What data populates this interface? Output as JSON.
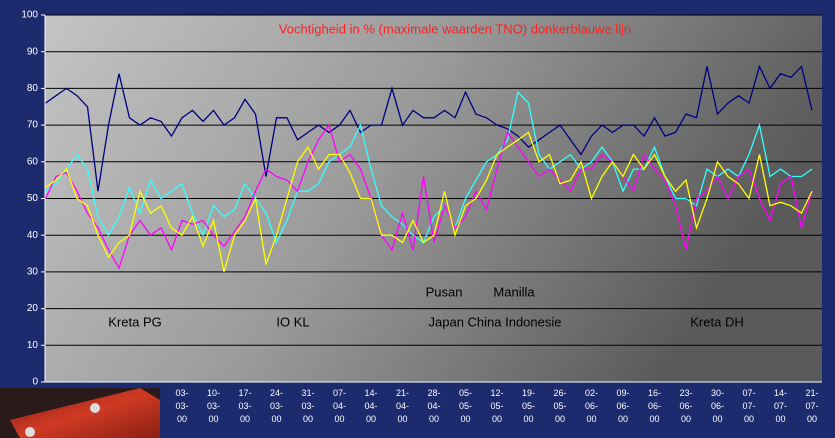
{
  "chart_data": {
    "type": "line",
    "title": "Vochtigheid in % (maximale waarden TNO) donkerblauwe lijn",
    "annotations": [
      "Kreta PG",
      "IO KL",
      "Pusan",
      "Manilla",
      "Japan China Indonesie",
      "Kreta DH"
    ],
    "categories": [
      null,
      null,
      null,
      null,
      null,
      null,
      null,
      null,
      null,
      null,
      null,
      null,
      null,
      "03-03-00",
      null,
      null,
      "10-03-00",
      null,
      null,
      "17-03-00",
      null,
      null,
      "24-03-00",
      null,
      null,
      "31-03-00",
      null,
      null,
      "07-04-00",
      null,
      null,
      "14-04-00",
      null,
      null,
      "21-04-00",
      null,
      null,
      "28-04-00",
      null,
      null,
      "05-05-00",
      null,
      null,
      "12-05-00",
      null,
      null,
      "19-05-00",
      null,
      null,
      "26-05-00",
      null,
      null,
      "02-06-00",
      null,
      null,
      "09-06-00",
      null,
      null,
      "16-06-00",
      null,
      null,
      "23-06-00",
      null,
      null,
      "30-06-00",
      null,
      null,
      "07-07-00",
      null,
      null,
      "14-07-00",
      null,
      null,
      "21-07-00"
    ],
    "series": [
      {
        "color": "#000080",
        "values": [
          76,
          78,
          80,
          78,
          75,
          52,
          70,
          84,
          72,
          70,
          72,
          71,
          67,
          72,
          74,
          71,
          74,
          70,
          72,
          77,
          73,
          56,
          72,
          72,
          66,
          68,
          70,
          68,
          70,
          74,
          68,
          70,
          70,
          80,
          70,
          74,
          72,
          72,
          74,
          72,
          79,
          73,
          72,
          70,
          69,
          67,
          64,
          66,
          68,
          70,
          66,
          62,
          67,
          70,
          68,
          70,
          70,
          67,
          72,
          67,
          68,
          73,
          72,
          86,
          73,
          76,
          78,
          76,
          86,
          80,
          84,
          83,
          86,
          74
        ]
      },
      {
        "color": "#33ffff",
        "values": [
          52,
          54,
          58,
          62,
          58,
          45,
          40,
          45,
          53,
          46,
          55,
          50,
          52,
          54,
          46,
          40,
          48,
          45,
          47,
          54,
          50,
          46,
          38,
          44,
          52,
          52,
          54,
          60,
          62,
          64,
          70,
          58,
          48,
          45,
          43,
          40,
          38,
          45,
          48,
          42,
          50,
          55,
          60,
          62,
          66,
          79,
          76,
          62,
          58,
          60,
          62,
          58,
          60,
          64,
          60,
          52,
          58,
          58,
          64,
          56,
          50,
          50,
          48,
          58,
          56,
          58,
          56,
          62,
          70,
          56,
          58,
          56,
          56,
          58
        ]
      },
      {
        "color": "#ff00ff",
        "values": [
          50,
          56,
          57,
          52,
          46,
          42,
          36,
          31,
          40,
          44,
          40,
          42,
          36,
          44,
          43,
          44,
          40,
          37,
          41,
          45,
          52,
          58,
          56,
          55,
          52,
          60,
          66,
          70,
          60,
          62,
          58,
          50,
          40,
          36,
          46,
          36,
          56,
          38,
          48,
          42,
          45,
          52,
          47,
          58,
          68,
          64,
          60,
          56,
          58,
          55,
          52,
          58,
          58,
          62,
          60,
          56,
          52,
          62,
          58,
          55,
          48,
          36,
          50,
          52,
          56,
          50,
          56,
          58,
          50,
          44,
          54,
          56,
          42,
          52
        ]
      },
      {
        "color": "#ffff00",
        "values": [
          53,
          55,
          58,
          50,
          48,
          40,
          34,
          38,
          40,
          52,
          46,
          48,
          42,
          40,
          45,
          37,
          44,
          30,
          40,
          44,
          50,
          32,
          40,
          50,
          60,
          64,
          58,
          62,
          62,
          57,
          50,
          50,
          40,
          40,
          38,
          44,
          38,
          40,
          52,
          40,
          48,
          50,
          55,
          62,
          64,
          66,
          68,
          60,
          62,
          54,
          55,
          60,
          50,
          56,
          60,
          56,
          62,
          58,
          62,
          56,
          52,
          55,
          42,
          50,
          60,
          56,
          54,
          50,
          62,
          48,
          49,
          48,
          46,
          52
        ]
      }
    ],
    "ylim": [
      0,
      100
    ],
    "yticks": [
      0,
      10,
      20,
      30,
      40,
      50,
      60,
      70,
      80,
      90,
      100
    ],
    "grid": true
  }
}
